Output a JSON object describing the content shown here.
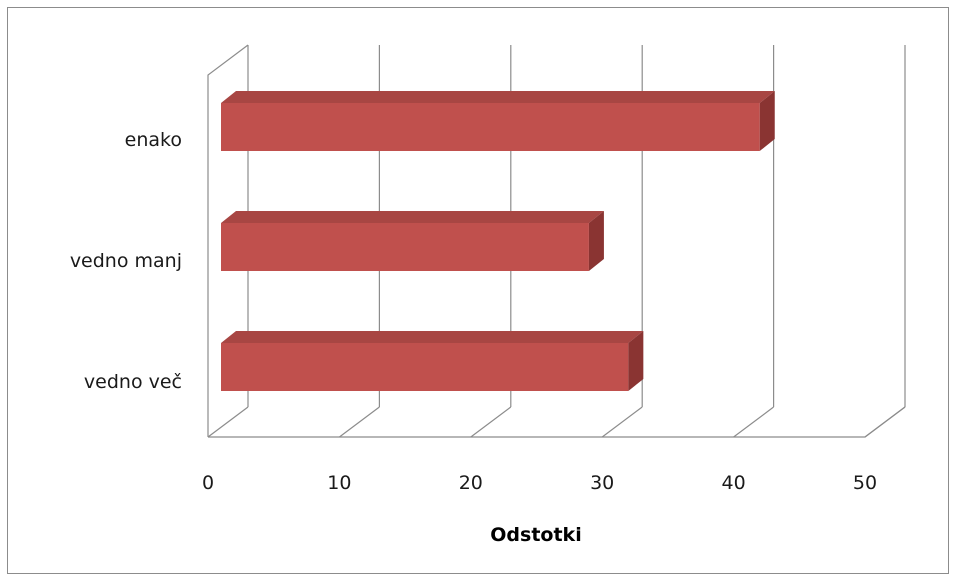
{
  "chart_data": {
    "type": "bar",
    "orientation": "horizontal",
    "style": "3d-clustered",
    "categories": [
      "enako",
      "vedno manj",
      "vedno več"
    ],
    "values": [
      41,
      28,
      31
    ],
    "xlabel": "Odstotki",
    "ylabel": "",
    "title": "",
    "xlim": [
      0,
      50
    ],
    "xticks": [
      0,
      10,
      20,
      30,
      40,
      50
    ],
    "grid": "vertical",
    "legend": "none",
    "colors": {
      "bar_front": "#c0504d",
      "bar_top": "#a84643",
      "bar_side": "#8a3432",
      "gridline": "#8c8c8c",
      "frame": "#8c8c8c"
    }
  }
}
